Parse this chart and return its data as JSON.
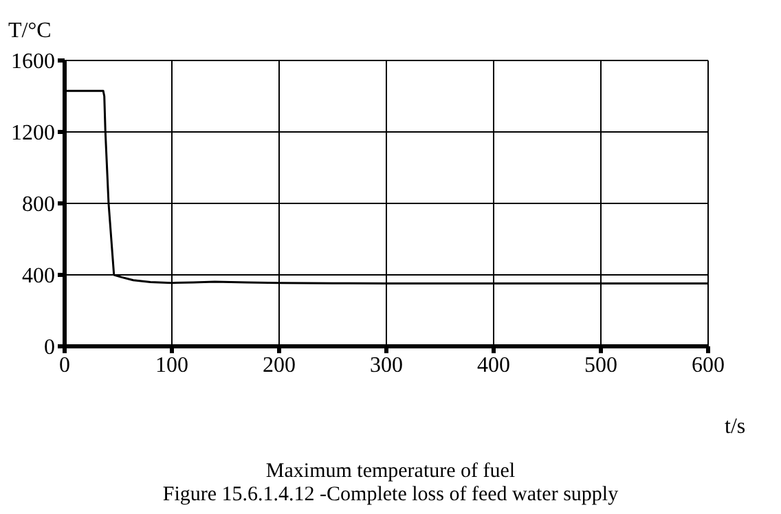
{
  "chart_data": {
    "type": "line",
    "xlabel": "t/s",
    "ylabel": "T/°C",
    "annotations": [
      "Maximum temperature of fuel",
      "Figure 15.6.1.4.12 -Complete loss of feed water supply"
    ],
    "series": [
      {
        "color": "#000000",
        "x": [
          0,
          10,
          20,
          30,
          36,
          37,
          38,
          41,
          46,
          53,
          64,
          80,
          100,
          120,
          140,
          170,
          200,
          250,
          300,
          400,
          500,
          600
        ],
        "values": [
          1430,
          1430,
          1430,
          1430,
          1430,
          1400,
          1200,
          800,
          400,
          387,
          370,
          360,
          355,
          358,
          362,
          358,
          355,
          353,
          352,
          352,
          352,
          352
        ]
      }
    ],
    "xlim": [
      0,
      600
    ],
    "xticks": [
      0,
      100,
      200,
      300,
      400,
      500,
      600
    ],
    "ylim": [
      0,
      1600
    ],
    "yticks": [
      0,
      400,
      800,
      1200,
      1600
    ],
    "grid": true,
    "marker": "none",
    "line_style": "solid"
  }
}
